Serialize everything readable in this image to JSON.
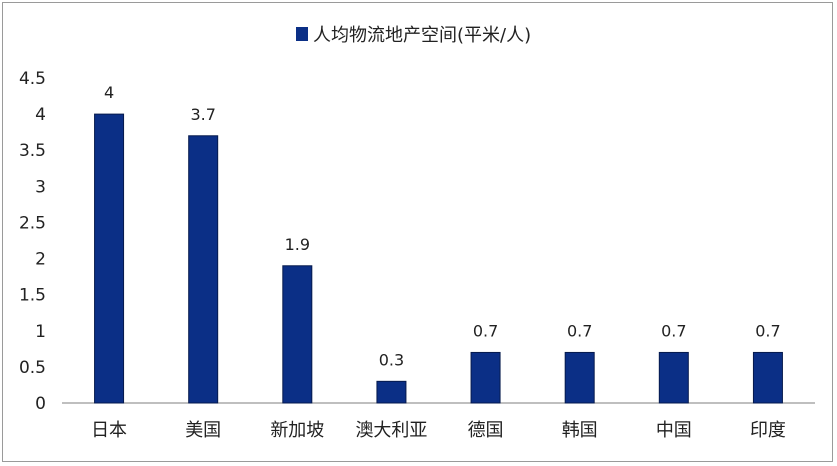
{
  "chart_data": {
    "type": "bar",
    "categories": [
      "日本",
      "美国",
      "新加坡",
      "澳大利亚",
      "德国",
      "韩国",
      "中国",
      "印度"
    ],
    "series": [
      {
        "name": "人均物流地产空间(平米/人)",
        "values": [
          4,
          3.7,
          1.9,
          0.3,
          0.7,
          0.7,
          0.7,
          0.7
        ]
      }
    ],
    "data_labels": [
      "4",
      "3.7",
      "1.9",
      "0.3",
      "0.7",
      "0.7",
      "0.7",
      "0.7"
    ],
    "ylim": [
      0,
      4.5
    ],
    "yticks": [
      "0",
      "0.5",
      "1",
      "1.5",
      "2",
      "2.5",
      "3",
      "3.5",
      "4",
      "4.5"
    ],
    "grid": false,
    "legend_position": "top",
    "bar_color": "#0b2f86",
    "xlabel": "",
    "ylabel": ""
  }
}
